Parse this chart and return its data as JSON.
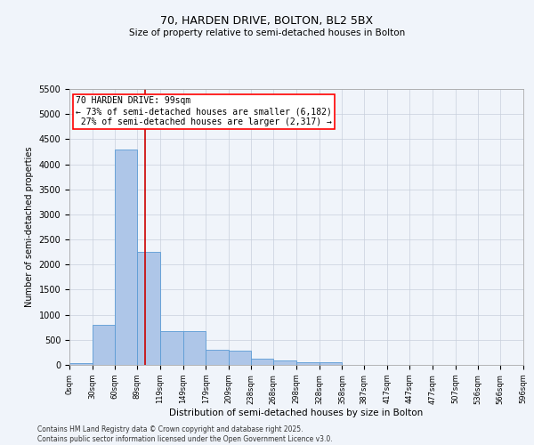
{
  "title": "70, HARDEN DRIVE, BOLTON, BL2 5BX",
  "subtitle": "Size of property relative to semi-detached houses in Bolton",
  "xlabel": "Distribution of semi-detached houses by size in Bolton",
  "ylabel": "Number of semi-detached properties",
  "property_label": "70 HARDEN DRIVE: 99sqm",
  "pct_smaller": 73,
  "pct_larger": 27,
  "count_smaller": 6182,
  "count_larger": 2317,
  "bin_edges": [
    0,
    30,
    60,
    89,
    119,
    149,
    179,
    209,
    238,
    268,
    298,
    328,
    358,
    387,
    417,
    447,
    477,
    507,
    536,
    566,
    596
  ],
  "bin_labels": [
    "0sqm",
    "30sqm",
    "60sqm",
    "89sqm",
    "119sqm",
    "149sqm",
    "179sqm",
    "209sqm",
    "238sqm",
    "268sqm",
    "298sqm",
    "328sqm",
    "358sqm",
    "387sqm",
    "417sqm",
    "447sqm",
    "477sqm",
    "507sqm",
    "536sqm",
    "566sqm",
    "596sqm"
  ],
  "bar_values": [
    30,
    800,
    4300,
    2250,
    680,
    680,
    300,
    280,
    120,
    80,
    60,
    50,
    0,
    0,
    0,
    0,
    0,
    0,
    0,
    0
  ],
  "bar_color": "#aec6e8",
  "bar_edge_color": "#5b9bd5",
  "vline_color": "#cc0000",
  "vline_x": 99,
  "ylim": [
    0,
    5500
  ],
  "yticks": [
    0,
    500,
    1000,
    1500,
    2000,
    2500,
    3000,
    3500,
    4000,
    4500,
    5000,
    5500
  ],
  "background_color": "#f0f4fa",
  "grid_color": "#c8d0dc",
  "title_fontsize": 9,
  "subtitle_fontsize": 8,
  "footer_line1": "Contains HM Land Registry data © Crown copyright and database right 2025.",
  "footer_line2": "Contains public sector information licensed under the Open Government Licence v3.0."
}
